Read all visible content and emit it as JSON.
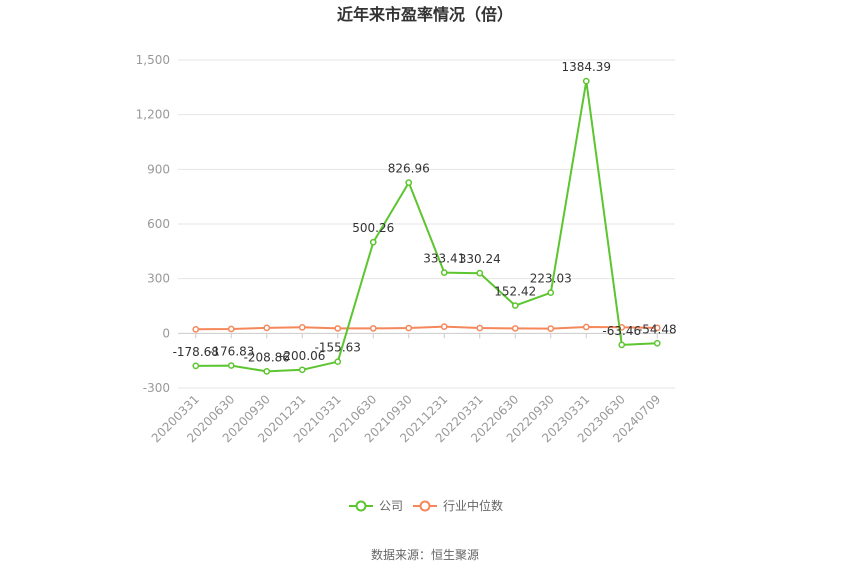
{
  "source": "数据来源：恒生聚源",
  "chart_data": {
    "type": "line",
    "title": "近年来市盈率情况（倍）",
    "categories": [
      "20200331",
      "20200630",
      "20200930",
      "20201231",
      "20210331",
      "20210630",
      "20210930",
      "20211231",
      "20220331",
      "20220630",
      "20220930",
      "20230331",
      "20230630",
      "20240709"
    ],
    "ylim": [
      -300,
      1500
    ],
    "yticks": [
      -300,
      0,
      300,
      600,
      900,
      1200,
      1500
    ],
    "ytick_labels": [
      "-300",
      "0",
      "300",
      "600",
      "900",
      "1,200",
      "1,500"
    ],
    "grid": true,
    "legend_position": "bottom",
    "series": [
      {
        "name": "公司",
        "color": "#5cc52f",
        "values": [
          -178.68,
          -176.83,
          -208.86,
          -200.06,
          -155.63,
          500.26,
          826.96,
          333.41,
          330.24,
          152.42,
          223.03,
          1384.39,
          -63.46,
          -54.48
        ],
        "labels": [
          "-178.68",
          "-176.83",
          "-208.86",
          "-200.06",
          "-155.63",
          "500.26",
          "826.96",
          "333.41",
          "330.24",
          "152.42",
          "223.03",
          "1384.39",
          "-63.46",
          "-54.48"
        ]
      },
      {
        "name": "行业中位数",
        "color": "#f5875b",
        "values": [
          22,
          24,
          30,
          33,
          27,
          27,
          29,
          37,
          29,
          27,
          26,
          35,
          33,
          30
        ]
      }
    ]
  }
}
